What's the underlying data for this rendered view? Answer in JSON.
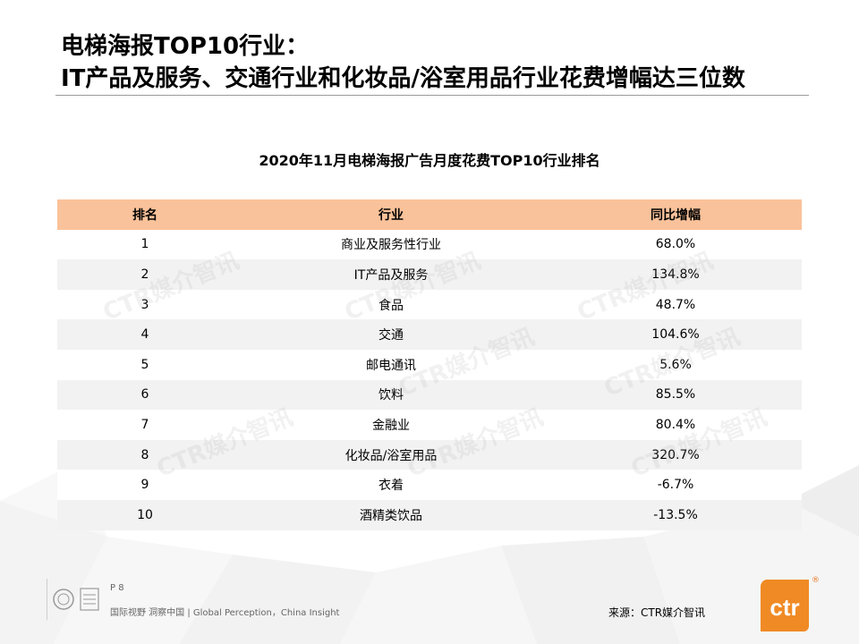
{
  "header": {
    "title_line1": "电梯海报TOP10行业：",
    "title_line2": "IT产品及服务、交通行业和化妆品/浴室用品行业花费增幅达三位数"
  },
  "table": {
    "title": "2020年11月电梯海报广告月度花费TOP10行业排名",
    "columns": [
      "排名",
      "行业",
      "同比增幅"
    ],
    "rows": [
      {
        "rank": "1",
        "industry": "商业及服务性行业",
        "growth": "68.0%"
      },
      {
        "rank": "2",
        "industry": "IT产品及服务",
        "growth": "134.8%"
      },
      {
        "rank": "3",
        "industry": "食品",
        "growth": "48.7%"
      },
      {
        "rank": "4",
        "industry": "交通",
        "growth": "104.6%"
      },
      {
        "rank": "5",
        "industry": "邮电通讯",
        "growth": "5.6%"
      },
      {
        "rank": "6",
        "industry": "饮料",
        "growth": "85.5%"
      },
      {
        "rank": "7",
        "industry": "金融业",
        "growth": "80.4%"
      },
      {
        "rank": "8",
        "industry": "化妆品/浴室用品",
        "growth": "320.7%"
      },
      {
        "rank": "9",
        "industry": "衣着",
        "growth": "-6.7%"
      },
      {
        "rank": "10",
        "industry": "酒精类饮品",
        "growth": "-13.5%"
      }
    ]
  },
  "watermark": {
    "text": "CTR媒介智讯"
  },
  "footer": {
    "page": "P 8",
    "slogan": "国际视野 洞察中国 | Global Perception，China Insight",
    "source": "来源：CTR媒介智讯",
    "logo_text": "ctr",
    "logo_reg": "®",
    "cert_icon": "certification-badges-icon"
  },
  "colors": {
    "header_row": "#fac29a",
    "stripe": "#f2f2f2",
    "brand_orange": "#f08a24"
  }
}
